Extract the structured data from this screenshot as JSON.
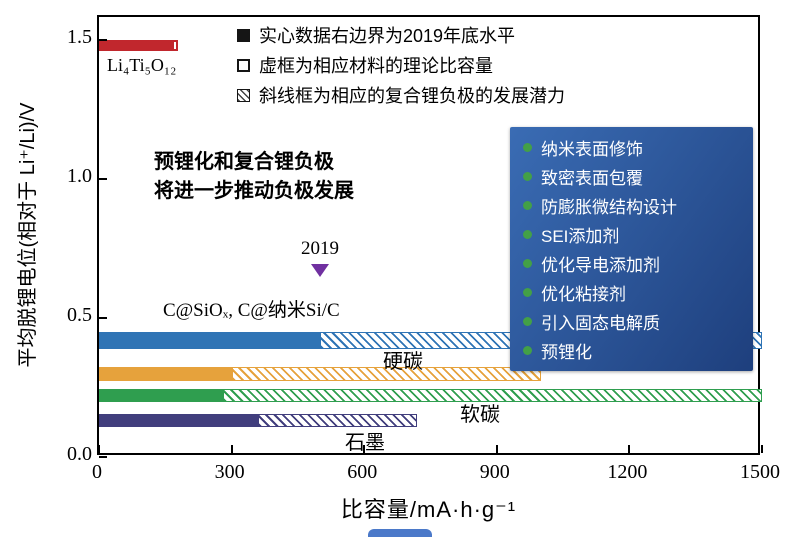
{
  "figure": {
    "legend": [
      {
        "key": "solid-black-square",
        "label": "实心数据右边界为2019年底水平"
      },
      {
        "key": "hollow-square",
        "label": "虚框为相应材料的理论比容量"
      },
      {
        "key": "hatched-square",
        "label": "斜线框为相应的复合锂负极的发展潜力"
      }
    ],
    "note_lines": [
      "预锂化和复合锂负极",
      "将进一步推动负极发展"
    ],
    "year_marker": {
      "label": "2019",
      "x_value": 500,
      "color": "#7030a0"
    },
    "panel": {
      "bg_top": "#3a6cb4",
      "bg_bottom": "#1e3f7d",
      "bullet_color": "#43a047",
      "items": [
        "纳米表面修饰",
        "致密表面包覆",
        "防膨胀微结构设计",
        "SEI添加剂",
        "优化导电添加剂",
        "优化粘接剂",
        "引入固态电解质",
        "预锂化"
      ]
    }
  },
  "chart_data": {
    "type": "bar",
    "orientation": "horizontal",
    "title": "",
    "xlabel": "比容量/mA·h·g⁻¹",
    "ylabel": "平均脱锂电位(相对于 Li⁺/Li)/V",
    "xlim": [
      0,
      1500
    ],
    "ylim": [
      0,
      1.5
    ],
    "grid": false,
    "x_ticks": [
      "0",
      "300",
      "600",
      "900",
      "1200",
      "1500"
    ],
    "y_ticks": [
      "0.0",
      "0.5",
      "1.0",
      "1.5"
    ],
    "segment_kinds": {
      "solid": "实心：2019年底实际水平",
      "hollow": "虚框：理论比容量",
      "hatched": "斜线框：复合锂负极发展潜力"
    },
    "series": [
      {
        "name": "Li₄Ti₅O₁₂",
        "potential_V": 1.48,
        "color": "#c1272d",
        "thickness_px": 11,
        "segments": [
          {
            "kind": "solid",
            "from": 0,
            "to": 165
          },
          {
            "kind": "hollow",
            "from": 165,
            "to": 178
          }
        ]
      },
      {
        "name": "C@SiOₓ, C@纳米Si/C",
        "potential_V": 0.42,
        "color": "#2f74b5",
        "thickness_px": 17,
        "segments": [
          {
            "kind": "solid",
            "from": 0,
            "to": 500
          },
          {
            "kind": "hatched",
            "from": 500,
            "to": 1500
          }
        ]
      },
      {
        "name": "硬碳",
        "potential_V": 0.3,
        "color": "#e6a23c",
        "thickness_px": 14,
        "segments": [
          {
            "kind": "solid",
            "from": 0,
            "to": 300
          },
          {
            "kind": "hatched",
            "from": 300,
            "to": 1000
          }
        ]
      },
      {
        "name": "软碳",
        "potential_V": 0.22,
        "color": "#2f9e4f",
        "thickness_px": 13,
        "segments": [
          {
            "kind": "solid",
            "from": 0,
            "to": 280
          },
          {
            "kind": "hatched",
            "from": 280,
            "to": 1500
          }
        ]
      },
      {
        "name": "石墨",
        "potential_V": 0.13,
        "color": "#413e7d",
        "thickness_px": 13,
        "segments": [
          {
            "kind": "solid",
            "from": 0,
            "to": 360
          },
          {
            "kind": "hatched",
            "from": 360,
            "to": 720
          }
        ]
      }
    ]
  }
}
